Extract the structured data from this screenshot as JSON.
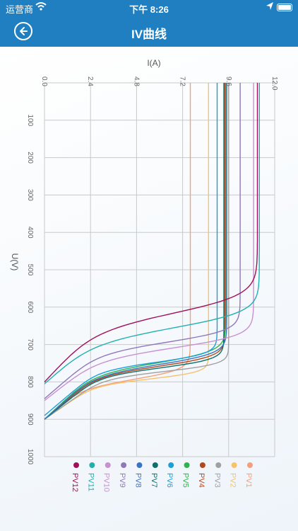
{
  "status_bar": {
    "carrier": "运营商",
    "time": "下午 8:26"
  },
  "nav": {
    "title": "IV曲线"
  },
  "colors": {
    "bar": "#1f7fc0"
  },
  "chart_data": {
    "type": "line",
    "orientation": "rotated-90",
    "xlabel": "I(A)",
    "ylabel": "U(V)",
    "xlim": [
      0,
      12
    ],
    "ylim": [
      0,
      1000
    ],
    "x_ticks": [
      "0.0",
      "2.4",
      "4.8",
      "7.2",
      "9.6",
      "12.0"
    ],
    "y_ticks": [
      "100",
      "200",
      "300",
      "400",
      "500",
      "600",
      "700",
      "800",
      "900",
      "1000"
    ],
    "grid": true,
    "legend_position": "bottom",
    "series": [
      {
        "name": "PV1",
        "color": "#f5a07a",
        "isc": 7.6,
        "voc": 900,
        "knee": 790,
        "bend": 80
      },
      {
        "name": "PV2",
        "color": "#f6c36b",
        "isc": 8.55,
        "voc": 900,
        "knee": 790,
        "bend": 55
      },
      {
        "name": "PV3",
        "color": "#a0a0a0",
        "isc": 9.6,
        "voc": 900,
        "knee": 770,
        "bend": 60
      },
      {
        "name": "PV4",
        "color": "#b5471a",
        "isc": 9.4,
        "voc": 900,
        "knee": 755,
        "bend": 80
      },
      {
        "name": "PV5",
        "color": "#2fb34a",
        "isc": 9.45,
        "voc": 900,
        "knee": 745,
        "bend": 95
      },
      {
        "name": "PV6",
        "color": "#1aa0d8",
        "isc": 9.0,
        "voc": 890,
        "knee": 745,
        "bend": 70
      },
      {
        "name": "PV7",
        "color": "#0f6f6a",
        "isc": 9.35,
        "voc": 900,
        "knee": 760,
        "bend": 70
      },
      {
        "name": "PV8",
        "color": "#3a74c4",
        "isc": 9.5,
        "voc": 900,
        "knee": 750,
        "bend": 90
      },
      {
        "name": "PV9",
        "color": "#8f78b8",
        "isc": 10.2,
        "voc": 845,
        "knee": 690,
        "bend": 95
      },
      {
        "name": "PV10",
        "color": "#c890d0",
        "isc": 10.9,
        "voc": 850,
        "knee": 705,
        "bend": 100
      },
      {
        "name": "PV11",
        "color": "#20b0b0",
        "isc": 11.2,
        "voc": 805,
        "knee": 650,
        "bend": 130
      },
      {
        "name": "PV12",
        "color": "#a0105a",
        "isc": 11.1,
        "voc": 800,
        "knee": 610,
        "bend": 150
      }
    ]
  }
}
